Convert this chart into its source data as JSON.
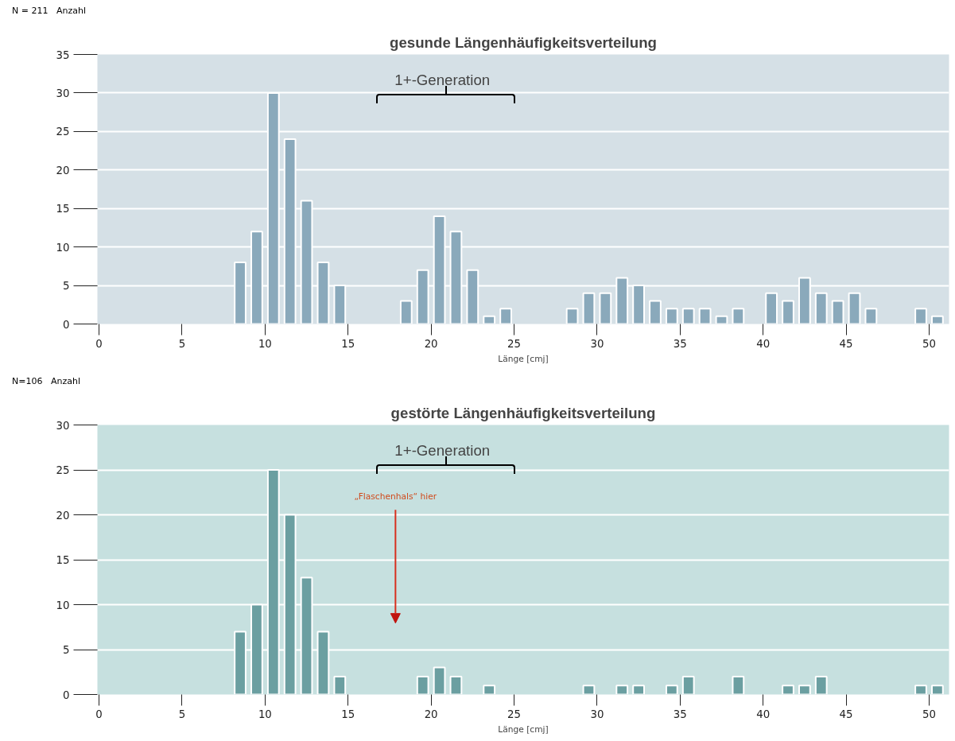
{
  "chart_data": [
    {
      "type": "histogram",
      "title": "gesunde Längenhäufigkeitsverteilung",
      "xlabel": "Länge [cmj]",
      "ylabel": "Anzahl",
      "bins": [
        0,
        1,
        2,
        3,
        4,
        5,
        6,
        7,
        8,
        9,
        10,
        11,
        12,
        13,
        14,
        15,
        16,
        17,
        18,
        19,
        20,
        21,
        22,
        23,
        24,
        25,
        26,
        27,
        28,
        29,
        30,
        31,
        32,
        33,
        34,
        35,
        36,
        37,
        38,
        39,
        40,
        41,
        42,
        43,
        44,
        45,
        46,
        47,
        48,
        49,
        50,
        51
      ],
      "values": [
        0,
        0,
        0,
        0,
        0,
        0,
        0,
        0,
        8,
        12,
        30,
        24,
        16,
        8,
        5,
        0,
        0,
        0,
        3,
        7,
        14,
        12,
        7,
        1,
        2,
        0,
        0,
        0,
        2,
        4,
        4,
        6,
        5,
        3,
        2,
        2,
        2,
        1,
        2,
        0,
        4,
        3,
        6,
        4,
        3,
        4,
        2,
        0,
        0,
        2,
        1
      ],
      "color": "#8aa9bb",
      "xlim": [
        -0.1,
        51.2
      ],
      "ylim": [
        0,
        35
      ],
      "xticks": [
        0,
        5,
        10,
        15,
        20,
        25,
        30,
        35,
        40,
        45,
        50
      ],
      "yticks": [
        0,
        5,
        10,
        15,
        20,
        25,
        30,
        35
      ],
      "grid": "y",
      "annotations": [
        "N = 211",
        "1+-Generation"
      ]
    },
    {
      "type": "histogram",
      "title": "gestörte Längenhäufigkeitsverteilung",
      "xlabel": "Länge [cmj]",
      "ylabel": "Anzahl",
      "bins": [
        0,
        1,
        2,
        3,
        4,
        5,
        6,
        7,
        8,
        9,
        10,
        11,
        12,
        13,
        14,
        15,
        16,
        17,
        18,
        19,
        20,
        21,
        22,
        23,
        24,
        25,
        26,
        27,
        28,
        29,
        30,
        31,
        32,
        33,
        34,
        35,
        36,
        37,
        38,
        39,
        40,
        41,
        42,
        43,
        44,
        45,
        46,
        47,
        48,
        49,
        50,
        51
      ],
      "values": [
        0,
        0,
        0,
        0,
        0,
        0,
        0,
        0,
        7,
        10,
        25,
        20,
        13,
        7,
        2,
        0,
        0,
        0,
        0,
        2,
        3,
        2,
        0,
        1,
        0,
        0,
        0,
        0,
        0,
        1,
        0,
        1,
        1,
        0,
        1,
        2,
        0,
        0,
        2,
        0,
        0,
        1,
        1,
        2,
        0,
        0,
        0,
        0,
        0,
        1,
        1
      ],
      "color": "#6b9fa1",
      "xlim": [
        -0.1,
        51.2
      ],
      "ylim": [
        0,
        30
      ],
      "xticks": [
        0,
        5,
        10,
        15,
        20,
        25,
        30,
        35,
        40,
        45,
        50
      ],
      "yticks": [
        0,
        5,
        10,
        15,
        20,
        25,
        30
      ],
      "grid": "y",
      "annotations": [
        "N=106",
        "1+-Generation",
        "„Flaschenhals“ hier"
      ]
    }
  ]
}
